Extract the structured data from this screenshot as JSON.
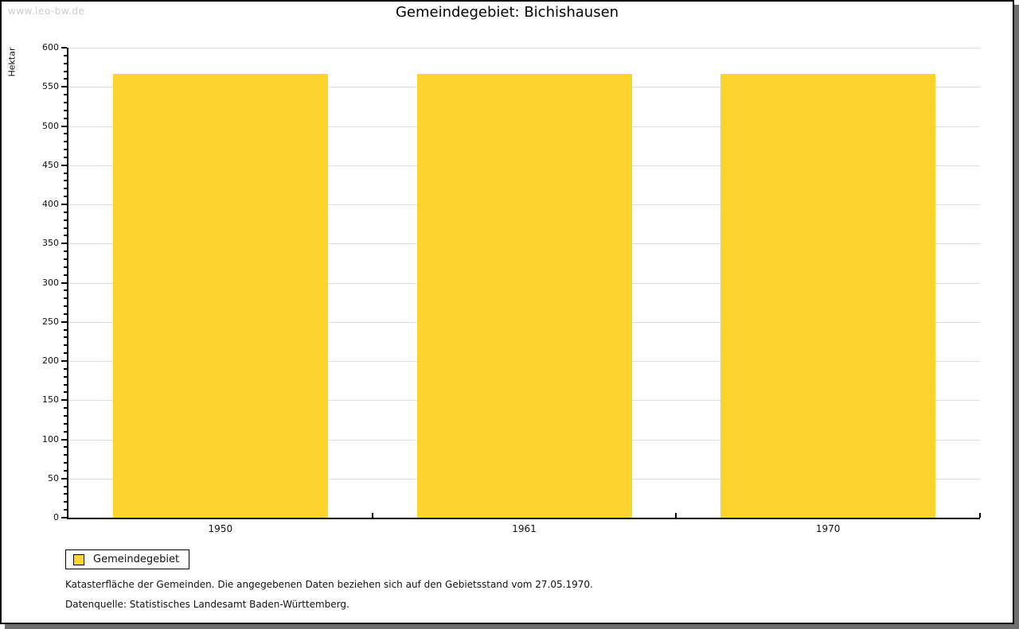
{
  "watermark": "www.leo-bw.de",
  "title": "Gemeindegebiet: Bichishausen",
  "chart_data": {
    "type": "bar",
    "title": "Gemeindegebiet: Bichishausen",
    "categories": [
      "1950",
      "1961",
      "1970"
    ],
    "series": [
      {
        "name": "Gemeindegebiet",
        "values": [
          567,
          567,
          567
        ]
      }
    ],
    "xlabel": "",
    "ylabel": "Hektar",
    "ylim": [
      0,
      600
    ],
    "yticks": [
      0,
      50,
      100,
      150,
      200,
      250,
      300,
      350,
      400,
      450,
      500,
      550,
      600
    ],
    "ytick_minor_step": 10,
    "grid": true,
    "bar_color": "#fcd42d",
    "legend_position": "below-left"
  },
  "legend": {
    "items": [
      {
        "label": "Gemeindegebiet",
        "color": "#fcd42d"
      }
    ]
  },
  "footnotes": {
    "line1": "Katasterfläche der Gemeinden. Die angegebenen Daten beziehen sich auf den Gebietsstand vom 27.05.1970.",
    "line2": "Datenquelle: Statistisches Landesamt Baden-Württemberg."
  }
}
